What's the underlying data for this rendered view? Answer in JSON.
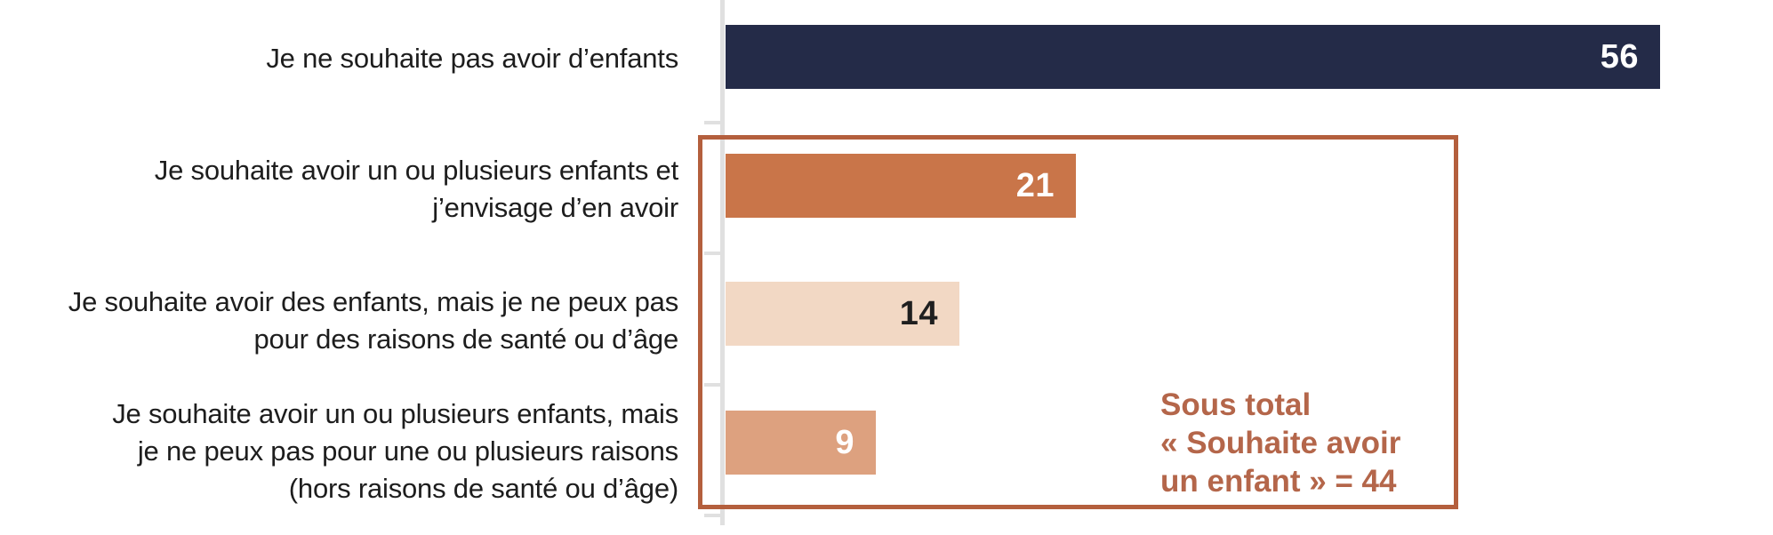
{
  "chart_data": {
    "type": "bar",
    "orientation": "horizontal",
    "title": "",
    "xlabel": "",
    "ylabel": "",
    "xlim": [
      0,
      56
    ],
    "grid": false,
    "axis_color": "#e0e0e0",
    "categories": [
      "Je ne souhaite pas avoir d’enfants",
      "Je souhaite avoir un ou plusieurs enfants et j’envisage d’en avoir",
      "Je souhaite avoir des enfants, mais je ne peux pas pour des raisons de santé ou d’âge",
      "Je souhaite avoir un ou plusieurs enfants, mais je ne peux pas pour une ou plusieurs raisons (hors raisons de santé ou d’âge)"
    ],
    "values": [
      56,
      21,
      14,
      9
    ],
    "rows": [
      {
        "label": "Je ne souhaite pas avoir d’enfants",
        "value": "56",
        "color": "#242b48",
        "value_color": "#ffffff"
      },
      {
        "label": "Je souhaite avoir un ou plusieurs enfants et\nj’envisage d’en avoir",
        "value": "21",
        "color": "#c97549",
        "value_color": "#ffffff"
      },
      {
        "label": "Je souhaite avoir des enfants, mais je ne peux pas\npour des raisons de santé ou d’âge",
        "value": "14",
        "color": "#f2d8c4",
        "value_color": "#1f1f1f"
      },
      {
        "label": "Je souhaite avoir un ou plusieurs enfants, mais\nje ne peux pas pour une ou plusieurs raisons\n(hors raisons de santé ou d’âge)",
        "value": "9",
        "color": "#dda17f",
        "value_color": "#ffffff"
      }
    ],
    "annotation": {
      "text": "Sous total\n« Souhaite avoir\nun enfant » = 44",
      "subtotal_value": 44,
      "text_color": "#b4664a",
      "box_color": "#b45f3d",
      "box_spans_rows": [
        2,
        3,
        4
      ]
    }
  }
}
